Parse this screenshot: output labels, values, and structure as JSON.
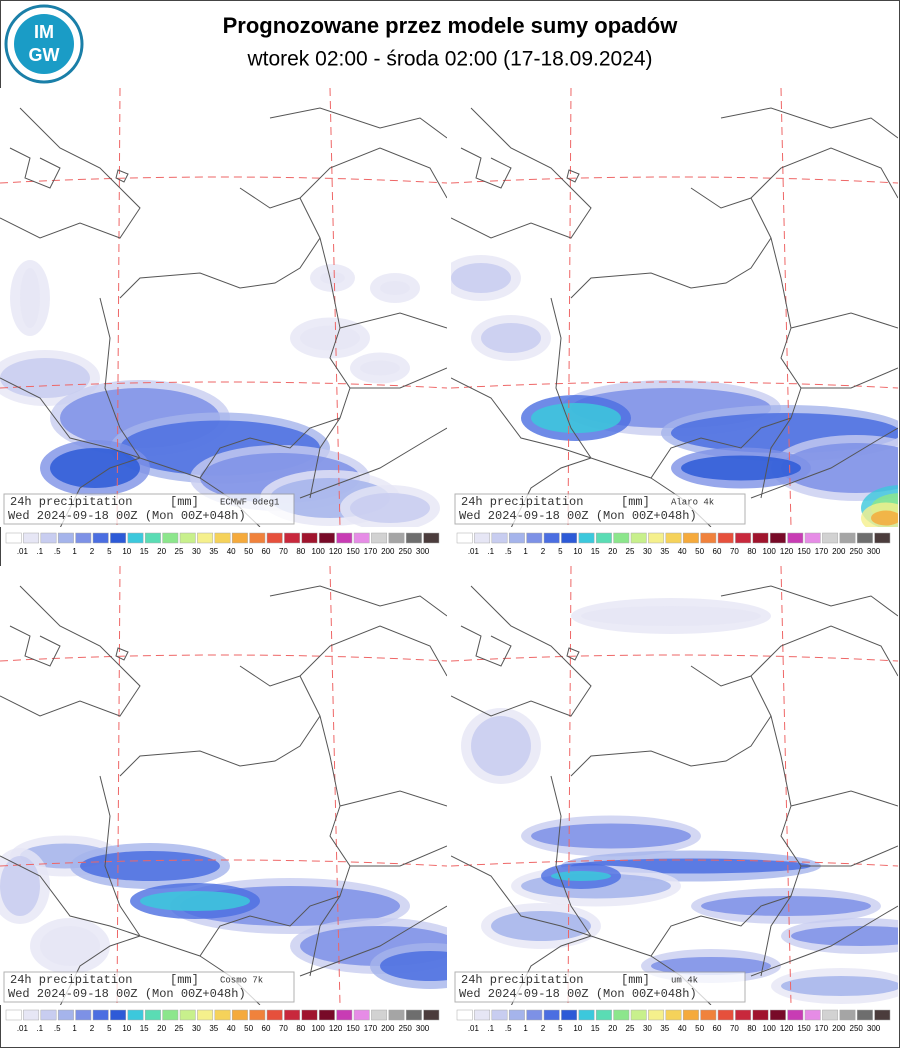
{
  "header": {
    "logo_top": "IM",
    "logo_bottom": "GW",
    "title": "Prognozowane przez modele sumy opadów",
    "subtitle": "wtorek 02:00 - środa 02:00 (17-18.09.2024)"
  },
  "colorbar": {
    "labels": [
      ".01",
      ".1",
      ".5",
      1,
      2,
      5,
      10,
      15,
      20,
      25,
      30,
      35,
      40,
      50,
      60,
      70,
      80,
      100,
      120,
      150,
      170,
      200,
      250,
      300
    ],
    "colors": [
      "#ffffff",
      "#e6e6f5",
      "#c8cdf0",
      "#a5b4eb",
      "#7d91e6",
      "#4b6ee1",
      "#2d5ad7",
      "#3cc8dc",
      "#5adcb4",
      "#8ce68c",
      "#c8f08c",
      "#f5f08c",
      "#f5d25a",
      "#f5aa3c",
      "#f0823c",
      "#e6503c",
      "#c8283c",
      "#a0142d",
      "#780a28",
      "#c83cb4",
      "#e68ce6",
      "#d2d2d2",
      "#a5a5a5",
      "#6e6e6e",
      "#4b3c3c"
    ]
  },
  "panels": [
    {
      "label": "24h precipitation",
      "unit": "[mm]",
      "model": "ECMWF 0deg1",
      "valid": "Wed 2024-09-18 00Z (Mon 00Z+048h)"
    },
    {
      "label": "24h precipitation",
      "unit": "[mm]",
      "model": "Alaro 4k",
      "valid": "Wed 2024-09-18 00Z (Mon 00Z+048h)"
    },
    {
      "label": "24h precipitation",
      "unit": "[mm]",
      "model": "Cosmo 7k",
      "valid": "Wed 2024-09-18 00Z (Mon 00Z+048h)"
    },
    {
      "label": "24h precipitation",
      "unit": "[mm]",
      "model": "um 4k",
      "valid": "Wed 2024-09-18 00Z (Mon 00Z+048h)"
    }
  ]
}
